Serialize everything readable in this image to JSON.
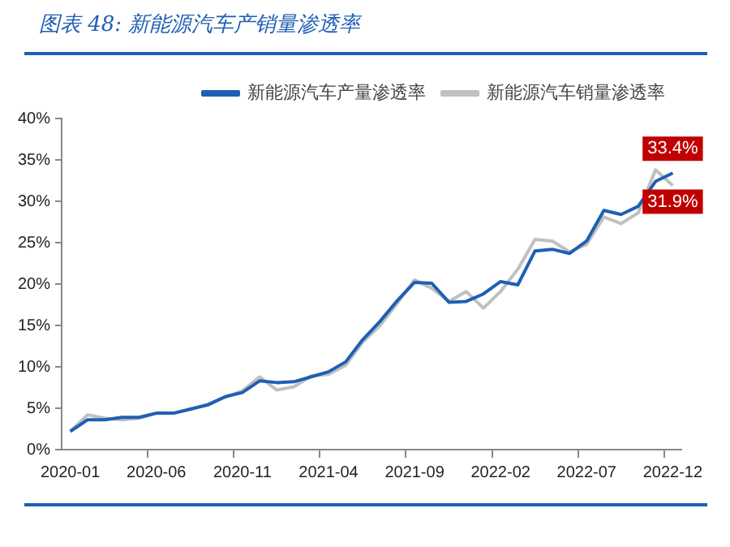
{
  "chart_data": {
    "type": "line",
    "title": "图表 48: 新能源汽车产销量渗透率",
    "categories": [
      "2020-01",
      null,
      null,
      null,
      null,
      "2020-06",
      null,
      null,
      null,
      null,
      "2020-11",
      null,
      null,
      null,
      null,
      "2021-04",
      null,
      null,
      null,
      null,
      "2021-09",
      null,
      null,
      null,
      null,
      "2022-02",
      null,
      null,
      null,
      null,
      "2022-07",
      null,
      null,
      null,
      null,
      "2022-12"
    ],
    "series": [
      {
        "name": "新能源汽车产量渗透率",
        "color": "#1f5fb4",
        "values": [
          2.2,
          3.6,
          3.6,
          3.9,
          3.9,
          4.4,
          4.4,
          4.9,
          5.4,
          6.4,
          6.9,
          8.3,
          8.1,
          8.2,
          8.8,
          9.4,
          10.6,
          13.3,
          15.5,
          18.0,
          20.2,
          20.1,
          17.8,
          17.9,
          18.8,
          20.3,
          19.9,
          24.0,
          24.2,
          23.7,
          25.2,
          28.9,
          28.4,
          29.4,
          32.4,
          33.4
        ],
        "value_labels": [
          null,
          null,
          null,
          null,
          null,
          null,
          null,
          null,
          null,
          null,
          null,
          null,
          null,
          null,
          null,
          null,
          null,
          null,
          null,
          null,
          null,
          null,
          null,
          null,
          null,
          null,
          null,
          null,
          null,
          null,
          null,
          null,
          null,
          null,
          null,
          "33.4%"
        ]
      },
      {
        "name": "新能源汽车销量渗透率",
        "color": "#c0c0c0",
        "values": [
          2.2,
          4.2,
          3.8,
          3.6,
          3.8,
          4.4,
          4.4,
          4.9,
          5.5,
          6.3,
          7.1,
          8.8,
          7.2,
          7.6,
          8.9,
          9.1,
          10.2,
          13.0,
          15.0,
          17.7,
          20.5,
          19.5,
          17.9,
          19.1,
          17.1,
          19.1,
          21.8,
          25.4,
          25.2,
          23.9,
          24.8,
          28.1,
          27.3,
          28.6,
          33.8,
          31.9
        ],
        "value_labels": [
          null,
          null,
          null,
          null,
          null,
          null,
          null,
          null,
          null,
          null,
          null,
          null,
          null,
          null,
          null,
          null,
          null,
          null,
          null,
          null,
          null,
          null,
          null,
          null,
          null,
          null,
          null,
          null,
          null,
          null,
          null,
          null,
          null,
          null,
          null,
          "31.9%"
        ]
      }
    ],
    "ylim": [
      0,
      40
    ],
    "yticks": [
      {
        "value": 0,
        "label": "0%"
      },
      {
        "value": 5,
        "label": "5%"
      },
      {
        "value": 10,
        "label": "10%"
      },
      {
        "value": 15,
        "label": "15%"
      },
      {
        "value": 20,
        "label": "20%"
      },
      {
        "value": 25,
        "label": "25%"
      },
      {
        "value": 30,
        "label": "30%"
      },
      {
        "value": 35,
        "label": "35%"
      },
      {
        "value": 40,
        "label": "40%"
      }
    ],
    "grid": false,
    "legend": "top right",
    "marker": "none",
    "line_style": "solid"
  }
}
